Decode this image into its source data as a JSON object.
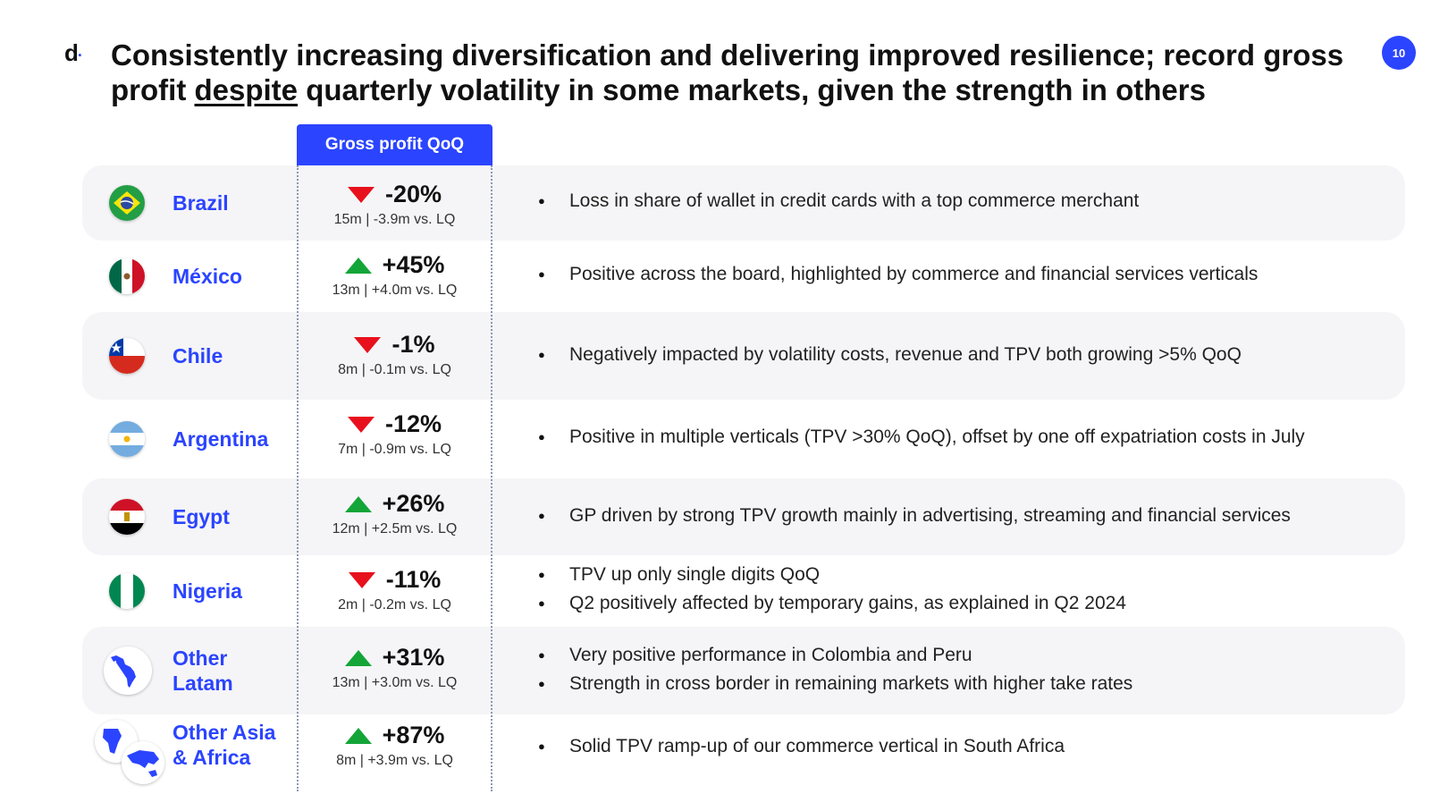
{
  "logo": {
    "letter": "d",
    "dot": "·"
  },
  "title": {
    "part1": "Consistently increasing diversification and delivering improved resilience; record gross profit ",
    "emphasis": "despite",
    "part2": " quarterly volatility in some markets, given the strength in others"
  },
  "page_number": "10",
  "column_header": "Gross profit QoQ",
  "colors": {
    "accent": "#2b44ff",
    "up": "#13a538",
    "down": "#e8101c",
    "band": "#f5f5f7"
  },
  "rows": [
    {
      "country": "Brazil",
      "flag": "brazil-flag-icon",
      "direction": "down",
      "change": "-20%",
      "detail": "15m | -3.9m vs. LQ",
      "bullets": [
        "Loss in share of wallet in credit cards with a top commerce merchant"
      ]
    },
    {
      "country": "México",
      "flag": "mexico-flag-icon",
      "direction": "up",
      "change": "+45%",
      "detail": "13m | +4.0m vs. LQ",
      "bullets": [
        "Positive across the board, highlighted by commerce and financial services verticals"
      ]
    },
    {
      "country": "Chile",
      "flag": "chile-flag-icon",
      "direction": "down",
      "change": "-1%",
      "detail": "8m | -0.1m vs. LQ",
      "bullets": [
        "Negatively impacted by volatility costs, revenue and TPV both growing >5% QoQ"
      ]
    },
    {
      "country": "Argentina",
      "flag": "argentina-flag-icon",
      "direction": "down",
      "change": "-12%",
      "detail": "7m | -0.9m vs. LQ",
      "bullets": [
        "Positive in multiple verticals (TPV >30% QoQ), offset by one off expatriation costs in July"
      ]
    },
    {
      "country": "Egypt",
      "flag": "egypt-flag-icon",
      "direction": "up",
      "change": "+26%",
      "detail": "12m | +2.5m vs. LQ",
      "bullets": [
        "GP driven by strong TPV growth mainly in advertising, streaming and financial services"
      ]
    },
    {
      "country": "Nigeria",
      "flag": "nigeria-flag-icon",
      "direction": "down",
      "change": "-11%",
      "detail": "2m | -0.2m vs. LQ",
      "bullets": [
        "TPV up only single digits QoQ",
        "Q2 positively affected by temporary gains, as explained in Q2 2024"
      ]
    },
    {
      "country": "Other Latam",
      "flag": "latam-globe-icon",
      "direction": "up",
      "change": "+31%",
      "detail": "13m | +3.0m vs. LQ",
      "bullets": [
        "Very positive performance in Colombia and Peru",
        "Strength in cross border in remaining markets with higher take rates"
      ]
    },
    {
      "country": "Other Asia & Africa",
      "flag": "asia-africa-globe-icon",
      "direction": "up",
      "change": "+87%",
      "detail": "8m | +3.9m vs. LQ",
      "bullets": [
        "Solid TPV ramp-up of our commerce vertical in South Africa"
      ]
    }
  ]
}
